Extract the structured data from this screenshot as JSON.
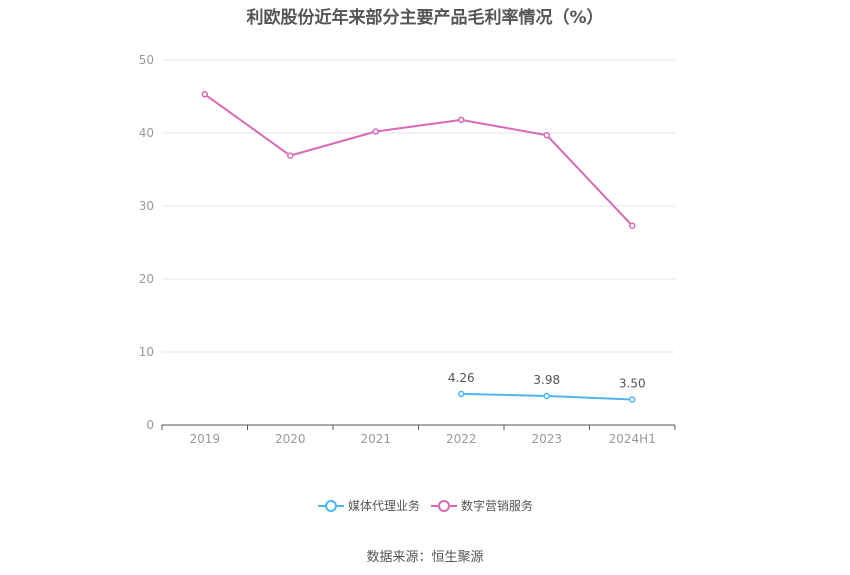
{
  "title": "利欧股份近年来部分主要产品毛利率情况（%）",
  "source": "数据来源：恒生聚源",
  "colors": {
    "series1": "#4db6ee",
    "series2": "#d66ab7",
    "grid": "#e3e3ee",
    "axis": "#555555"
  },
  "chart_data": {
    "type": "line",
    "title": "利欧股份近年来部分主要产品毛利率情况（%）",
    "categories": [
      "2019",
      "2020",
      "2021",
      "2022",
      "2023",
      "2024H1"
    ],
    "yticks": [
      "0",
      "10",
      "20",
      "30",
      "40",
      "50"
    ],
    "ylim": [
      0,
      50
    ],
    "grid": true,
    "legend_position": "bottom",
    "series": [
      {
        "name": "媒体代理业务",
        "values": [
          null,
          null,
          null,
          4.26,
          3.98,
          3.5
        ],
        "labels": [
          "",
          "",
          "",
          "4.26",
          "3.98",
          "3.50"
        ]
      },
      {
        "name": "数字营销服务",
        "values": [
          45.3,
          36.9,
          40.2,
          41.8,
          39.7,
          27.3
        ]
      }
    ]
  }
}
